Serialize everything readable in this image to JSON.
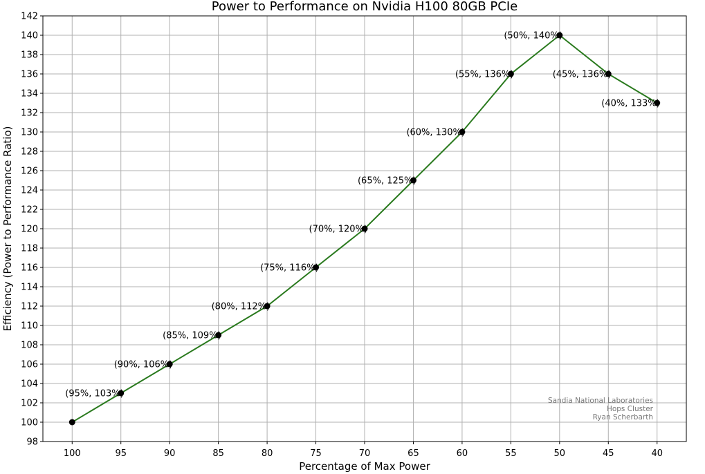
{
  "chart_data": {
    "type": "line",
    "title": "Power to Performance on Nvidia H100 80GB PCIe",
    "xlabel": "Percentage of Max Power",
    "ylabel": "Efficiency (Power to Performance Ratio)",
    "x": [
      100,
      95,
      90,
      85,
      80,
      75,
      70,
      65,
      60,
      55,
      50,
      45,
      40
    ],
    "series": [
      {
        "values": [
          100,
          103,
          106,
          109,
          112,
          116,
          120,
          125,
          130,
          136,
          140,
          136,
          133
        ]
      }
    ],
    "point_labels": [
      "",
      "(95%, 103%)",
      "(90%, 106%)",
      "(85%, 109%)",
      "(80%, 112%)",
      "(75%, 116%)",
      "(70%, 120%)",
      "(65%, 125%)",
      "(60%, 130%)",
      "(55%, 136%)",
      "(50%, 140%)",
      "(45%, 136%)",
      "(40%, 133%)"
    ],
    "xlim": [
      103,
      37
    ],
    "ylim": [
      98,
      142
    ],
    "xticks": [
      100,
      95,
      90,
      85,
      80,
      75,
      70,
      65,
      60,
      55,
      50,
      45,
      40
    ],
    "yticks": [
      98,
      100,
      102,
      104,
      106,
      108,
      110,
      112,
      114,
      116,
      118,
      120,
      122,
      124,
      126,
      128,
      130,
      132,
      134,
      136,
      138,
      140,
      142
    ],
    "x_inverted": true,
    "grid": true,
    "line_color": "#2a7a1e",
    "marker_color": "#000000",
    "annotation": [
      "Sandia National Laboratories",
      "Hops Cluster",
      "Ryan Scherbarth"
    ]
  }
}
